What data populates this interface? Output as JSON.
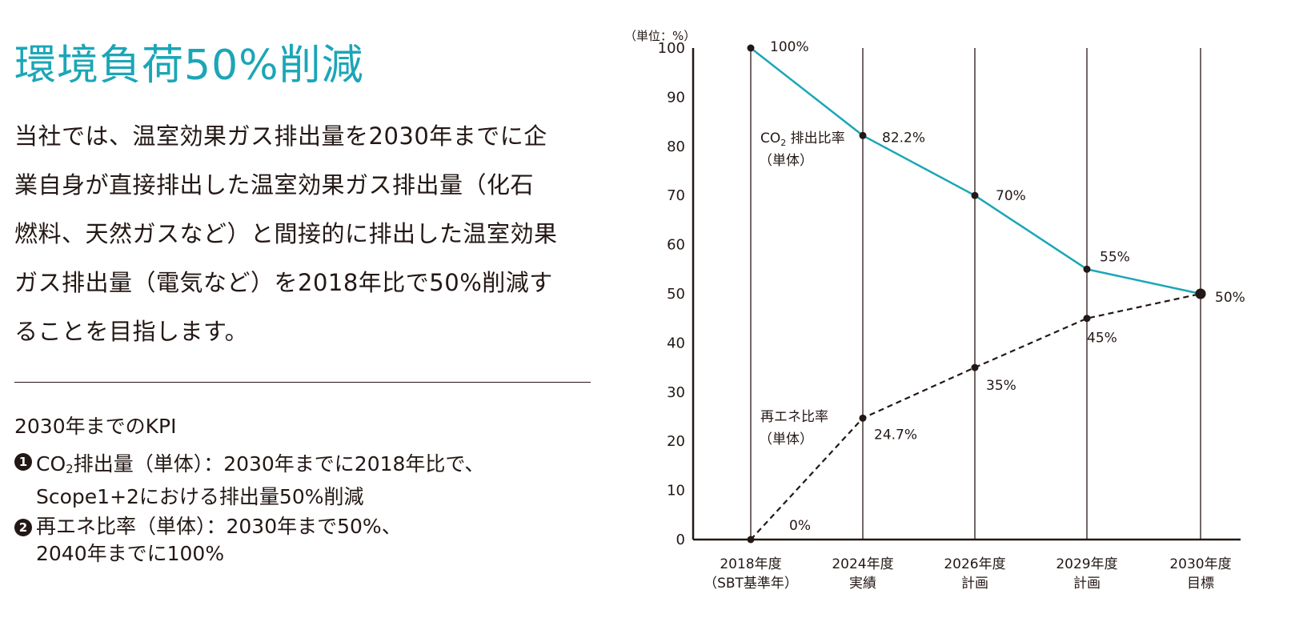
{
  "heading": "環境負荷50%削減",
  "body_lines": [
    "当社では、温室効果ガス排出量を2030年までに企",
    "業自身が直接排出した温室効果ガス排出量（化石",
    "燃料、天然ガスなど）と間接的に排出した温室効果",
    "ガス排出量（電気など）を2018年比で50%削減す",
    "ることを目指します。"
  ],
  "kpi": {
    "heading": "2030年までのKPI",
    "items": [
      {
        "badge": "1",
        "line1_pre": "CO",
        "line1_sub": "2",
        "line1_post": "排出量（単体）：2030年までに2018年比で、",
        "line2": "Scope1+2における排出量50%削減"
      },
      {
        "badge": "2",
        "line1_pre": "再エネ比率（単体）：2030年まで50%、",
        "line1_sub": "",
        "line1_post": "",
        "line2": "2040年までに100%"
      }
    ]
  },
  "colors": {
    "accent": "#1ba6b7",
    "ink": "#231815"
  },
  "chart_data": {
    "type": "line",
    "unit_label": "（単位：%）",
    "ylim": [
      0,
      100
    ],
    "yticks": [
      0,
      10,
      20,
      30,
      40,
      50,
      60,
      70,
      80,
      90,
      100
    ],
    "categories": [
      {
        "line1": "2018年度",
        "line2": "（SBT基準年）"
      },
      {
        "line1": "2024年度",
        "line2": "実績"
      },
      {
        "line1": "2026年度",
        "line2": "計画"
      },
      {
        "line1": "2029年度",
        "line2": "計画"
      },
      {
        "line1": "2030年度",
        "line2": "目標"
      }
    ],
    "series": [
      {
        "name": "CO2 排出比率（単体）",
        "label_line1_pre": "CO",
        "label_line1_sub": "2",
        "label_line1_post": " 排出比率",
        "label_line2": "（単体）",
        "values": [
          100,
          82.2,
          70,
          55,
          50
        ],
        "point_labels": [
          "100%",
          "82.2%",
          "70%",
          "55%",
          "50%"
        ],
        "style": "solid",
        "color": "#1ba6b7"
      },
      {
        "name": "再エネ比率（単体）",
        "label_line1_pre": "再エネ比率",
        "label_line1_sub": "",
        "label_line1_post": "",
        "label_line2": "（単体）",
        "values": [
          0,
          24.7,
          35,
          45,
          50
        ],
        "point_labels": [
          "0%",
          "24.7%",
          "35%",
          "45%",
          ""
        ],
        "style": "dashed",
        "color": "#231815"
      }
    ],
    "grid": "vertical lines at each category"
  }
}
